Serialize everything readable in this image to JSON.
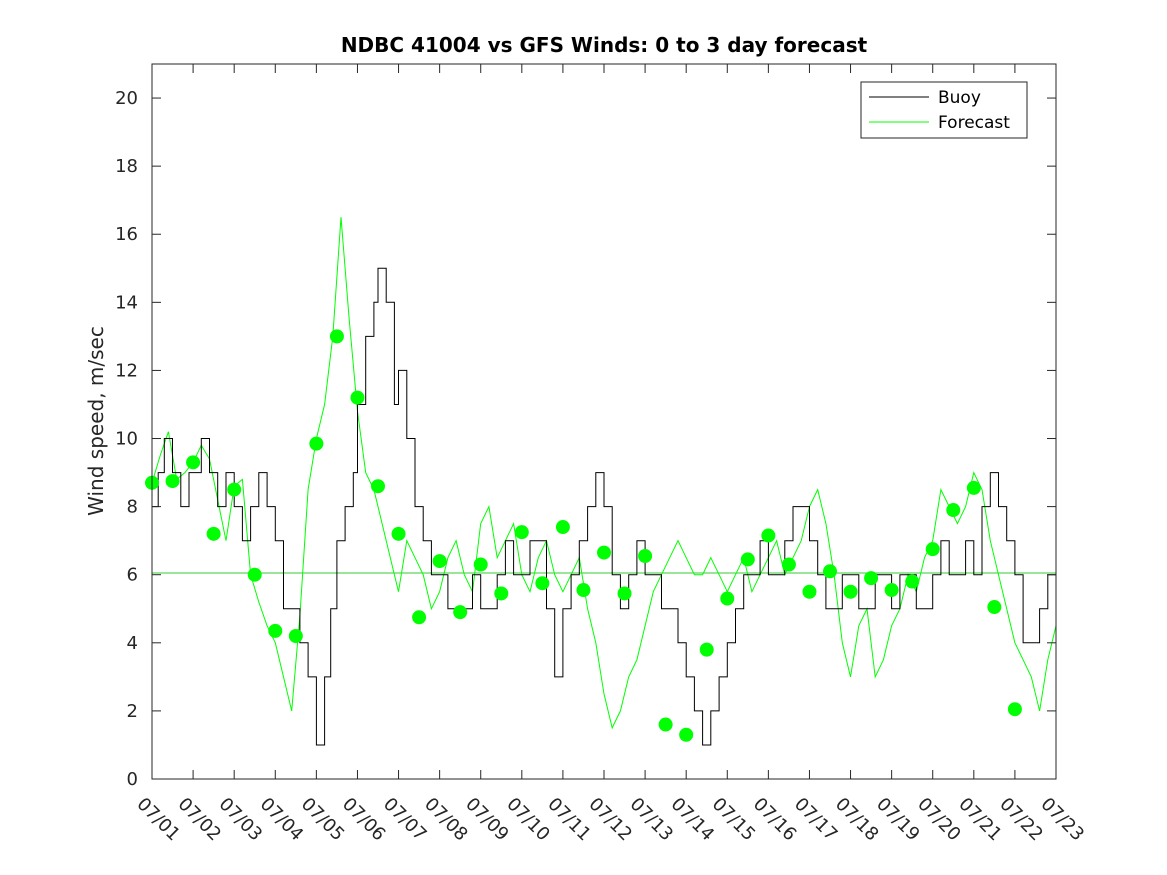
{
  "chart_data": {
    "type": "line",
    "title": "NDBC 41004 vs GFS Winds: 0 to 3 day forecast",
    "xlabel": "",
    "ylabel": "Wind speed, m/sec",
    "x_ticks": [
      "07/01",
      "07/02",
      "07/03",
      "07/04",
      "07/05",
      "07/06",
      "07/07",
      "07/08",
      "07/09",
      "07/10",
      "07/11",
      "07/12",
      "07/13",
      "07/14",
      "07/15",
      "07/16",
      "07/17",
      "07/18",
      "07/19",
      "07/20",
      "07/21",
      "07/22",
      "07/23"
    ],
    "xlim": [
      0,
      22
    ],
    "ylim": [
      0,
      21
    ],
    "y_ticks": [
      0,
      2,
      4,
      6,
      8,
      10,
      12,
      14,
      16,
      18,
      20
    ],
    "grid": false,
    "legend": {
      "position": "top-right",
      "entries": [
        "Buoy",
        "Forecast"
      ]
    },
    "colors": {
      "buoy": "#000000",
      "forecast": "#00ff00",
      "mean_line": "#33cc33",
      "markers": "#00ff00"
    },
    "reference_line": {
      "y": 6.05
    },
    "series": [
      {
        "name": "Buoy",
        "x": [
          0,
          0.15,
          0.3,
          0.5,
          0.7,
          0.9,
          1.0,
          1.2,
          1.4,
          1.6,
          1.8,
          2.0,
          2.2,
          2.4,
          2.6,
          2.8,
          3.0,
          3.2,
          3.4,
          3.6,
          3.8,
          4.0,
          4.2,
          4.35,
          4.5,
          4.7,
          4.9,
          5.0,
          5.2,
          5.4,
          5.5,
          5.7,
          5.9,
          6.0,
          6.2,
          6.4,
          6.6,
          6.8,
          7.0,
          7.2,
          7.4,
          7.6,
          7.8,
          8.0,
          8.2,
          8.4,
          8.6,
          8.8,
          9.0,
          9.2,
          9.4,
          9.6,
          9.8,
          10.0,
          10.2,
          10.4,
          10.6,
          10.8,
          11.0,
          11.2,
          11.4,
          11.6,
          11.8,
          12.0,
          12.2,
          12.4,
          12.6,
          12.8,
          13.0,
          13.2,
          13.4,
          13.6,
          13.8,
          14.0,
          14.2,
          14.4,
          14.6,
          14.8,
          15.0,
          15.2,
          15.4,
          15.6,
          15.8,
          16.0,
          16.2,
          16.4,
          16.6,
          16.8,
          17.0,
          17.2,
          17.4,
          17.6,
          17.8,
          18.0,
          18.2,
          18.4,
          18.6,
          18.8,
          19.0,
          19.2,
          19.4,
          19.6,
          19.8,
          20.0,
          20.2,
          20.4,
          20.6,
          20.8,
          21.0,
          21.2,
          21.4,
          21.6,
          21.8,
          22.0
        ],
        "values": [
          8,
          9,
          10,
          9,
          8,
          9,
          9,
          10,
          9,
          8,
          9,
          8,
          7,
          8,
          9,
          8,
          7,
          5,
          5,
          4,
          3,
          1,
          3,
          5,
          7,
          8,
          9,
          11,
          13,
          14,
          15,
          14,
          11,
          12,
          10,
          8,
          7,
          6,
          6,
          5,
          5,
          5,
          6,
          5,
          5,
          6,
          7,
          6,
          6,
          7,
          7,
          5,
          3,
          5,
          6,
          7,
          8,
          9,
          8,
          6,
          5,
          6,
          7,
          6,
          6,
          5,
          5,
          4,
          3,
          2,
          1,
          2,
          3,
          4,
          5,
          6,
          6,
          7,
          6,
          6,
          7,
          8,
          8,
          7,
          6,
          5,
          5,
          6,
          6,
          5,
          5,
          6,
          6,
          5,
          6,
          6,
          5,
          5,
          6,
          7,
          6,
          6,
          7,
          6,
          8,
          9,
          8,
          7,
          6,
          4,
          4,
          5,
          6,
          5
        ]
      },
      {
        "name": "Forecast",
        "x": [
          0,
          0.2,
          0.4,
          0.6,
          0.8,
          1.0,
          1.2,
          1.4,
          1.6,
          1.8,
          2.0,
          2.2,
          2.4,
          2.6,
          2.8,
          3.0,
          3.2,
          3.4,
          3.6,
          3.8,
          4.0,
          4.2,
          4.4,
          4.6,
          4.8,
          5.0,
          5.2,
          5.4,
          5.6,
          5.8,
          6.0,
          6.2,
          6.4,
          6.6,
          6.8,
          7.0,
          7.2,
          7.4,
          7.6,
          7.8,
          8.0,
          8.2,
          8.4,
          8.6,
          8.8,
          9.0,
          9.2,
          9.4,
          9.6,
          9.8,
          10.0,
          10.2,
          10.4,
          10.6,
          10.8,
          11.0,
          11.2,
          11.4,
          11.6,
          11.8,
          12.0,
          12.2,
          12.4,
          12.6,
          12.8,
          13.0,
          13.2,
          13.4,
          13.6,
          13.8,
          14.0,
          14.2,
          14.4,
          14.6,
          14.8,
          15.0,
          15.2,
          15.4,
          15.6,
          15.8,
          16.0,
          16.2,
          16.4,
          16.6,
          16.8,
          17.0,
          17.2,
          17.4,
          17.6,
          17.8,
          18.0,
          18.2,
          18.4,
          18.6,
          18.8,
          19.0,
          19.2,
          19.4,
          19.6,
          19.8,
          20.0,
          20.2,
          20.4,
          20.6,
          20.8,
          21.0,
          21.2,
          21.4,
          21.6,
          21.8,
          22.0
        ],
        "values": [
          8.7,
          9.5,
          10.2,
          8.8,
          9.0,
          9.3,
          9.8,
          9.4,
          8.2,
          7.0,
          8.6,
          8.8,
          6.0,
          5.2,
          4.5,
          4.0,
          3.0,
          2.0,
          4.8,
          8.5,
          10.0,
          11.0,
          13.0,
          16.5,
          13.5,
          10.8,
          9.0,
          8.5,
          7.5,
          6.5,
          5.5,
          7.0,
          6.5,
          6.0,
          5.0,
          5.5,
          6.5,
          7.0,
          6.0,
          5.5,
          7.5,
          8.0,
          6.5,
          7.0,
          7.5,
          6.0,
          5.5,
          6.5,
          7.0,
          6.0,
          5.5,
          6.0,
          6.5,
          5.0,
          4.0,
          2.5,
          1.5,
          2.0,
          3.0,
          3.5,
          4.5,
          5.5,
          6.0,
          6.5,
          7.0,
          6.5,
          6.0,
          6.0,
          6.5,
          6.0,
          5.5,
          6.0,
          6.5,
          5.5,
          6.0,
          6.5,
          7.0,
          6.0,
          6.5,
          7.0,
          8.0,
          8.5,
          7.5,
          6.0,
          4.0,
          3.0,
          4.5,
          5.0,
          3.0,
          3.5,
          4.5,
          5.0,
          6.0,
          5.5,
          6.5,
          7.0,
          8.5,
          8.0,
          7.5,
          8.0,
          9.0,
          8.5,
          7.0,
          6.0,
          5.0,
          4.0,
          3.5,
          3.0,
          2.0,
          3.5,
          4.5
        ]
      },
      {
        "name": "",
        "x": [
          0,
          0.5,
          1.0,
          1.5,
          2.0,
          2.5,
          3.0,
          3.5,
          4.0,
          4.5,
          5.0,
          5.5,
          6.0,
          6.5,
          7.0,
          7.5,
          8.0,
          8.5,
          9.0,
          9.5,
          10.0,
          10.5,
          11.0,
          11.5,
          12.0,
          12.5,
          13.0,
          13.5,
          14.0,
          14.5,
          15.0,
          15.5,
          16.0,
          16.5,
          17.0,
          17.5,
          18.0,
          18.5,
          19.0,
          19.5,
          20.0,
          20.5,
          21.0
        ],
        "values": [
          8.7,
          8.75,
          9.3,
          7.2,
          8.5,
          6.0,
          4.35,
          4.2,
          9.85,
          13.0,
          11.2,
          8.6,
          7.2,
          4.75,
          6.4,
          4.9,
          6.3,
          5.45,
          7.25,
          5.75,
          7.4,
          5.55,
          6.65,
          5.45,
          6.55,
          1.6,
          1.3,
          3.8,
          5.3,
          6.45,
          7.15,
          6.3,
          5.5,
          6.1,
          5.5,
          5.9,
          5.55,
          5.8,
          6.75,
          7.9,
          8.55,
          5.05,
          2.05
        ]
      }
    ]
  }
}
